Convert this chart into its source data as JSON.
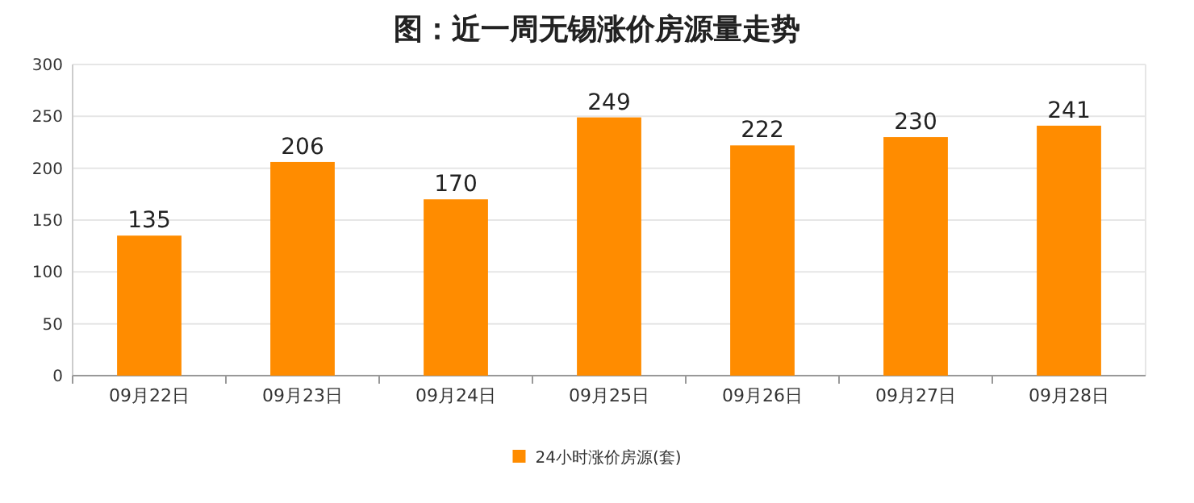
{
  "chart_data": {
    "type": "bar",
    "title": "图：近一周无锡涨价房源量走势",
    "categories": [
      "09月22日",
      "09月23日",
      "09月24日",
      "09月25日",
      "09月26日",
      "09月27日",
      "09月28日"
    ],
    "series": [
      {
        "name": "24小时涨价房源(套)",
        "color": "#ff8c00",
        "values": [
          135,
          206,
          170,
          249,
          222,
          230,
          241
        ]
      }
    ],
    "ylim": [
      0,
      300
    ],
    "yticks": [
      0,
      50,
      100,
      150,
      200,
      250,
      300
    ],
    "grid": "y",
    "legend": "bottom",
    "data_labels": true
  }
}
